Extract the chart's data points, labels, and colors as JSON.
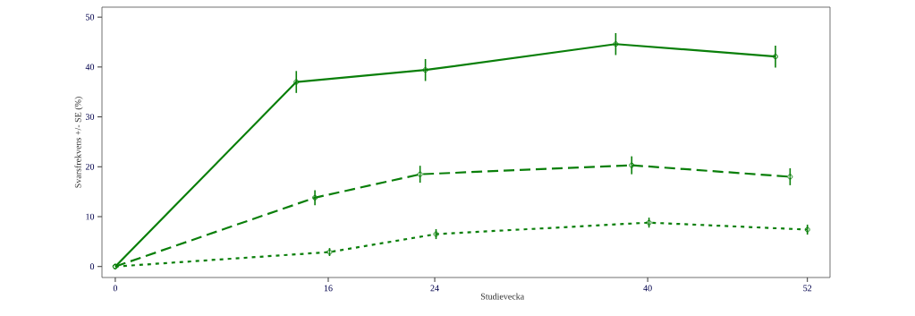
{
  "chart_data": {
    "type": "line",
    "xlabel": "Studievecka",
    "ylabel": "Svarsfrekvens +/- SE (%)",
    "xlim": [
      -1,
      53.7
    ],
    "ylim": [
      -2.2,
      52
    ],
    "xticks": [
      0,
      16,
      24,
      40,
      52
    ],
    "yticks": [
      0,
      10,
      20,
      30,
      40,
      50
    ],
    "marker": "circle",
    "grid": false,
    "series": [
      {
        "color": "#0a7f0a",
        "line_style": "solid",
        "x": [
          0,
          13.6,
          23.3,
          37.6,
          49.6
        ],
        "values": [
          0,
          37.0,
          39.4,
          44.6,
          42.1
        ],
        "errors": [
          null,
          2.2,
          2.2,
          2.2,
          2.2
        ]
      },
      {
        "color": "#0a7f0a",
        "line_style": "dashed",
        "x": [
          0,
          15.0,
          22.9,
          38.8,
          50.7
        ],
        "values": [
          0,
          13.8,
          18.5,
          20.3,
          18.0
        ],
        "errors": [
          null,
          1.5,
          1.7,
          1.8,
          1.7
        ]
      },
      {
        "color": "#0a7f0a",
        "line_style": "dotted",
        "x": [
          0,
          16.1,
          24.1,
          40.1,
          52
        ],
        "values": [
          0,
          2.9,
          6.5,
          8.8,
          7.4
        ],
        "errors": [
          null,
          0.8,
          1.0,
          1.0,
          1.0
        ]
      }
    ]
  }
}
